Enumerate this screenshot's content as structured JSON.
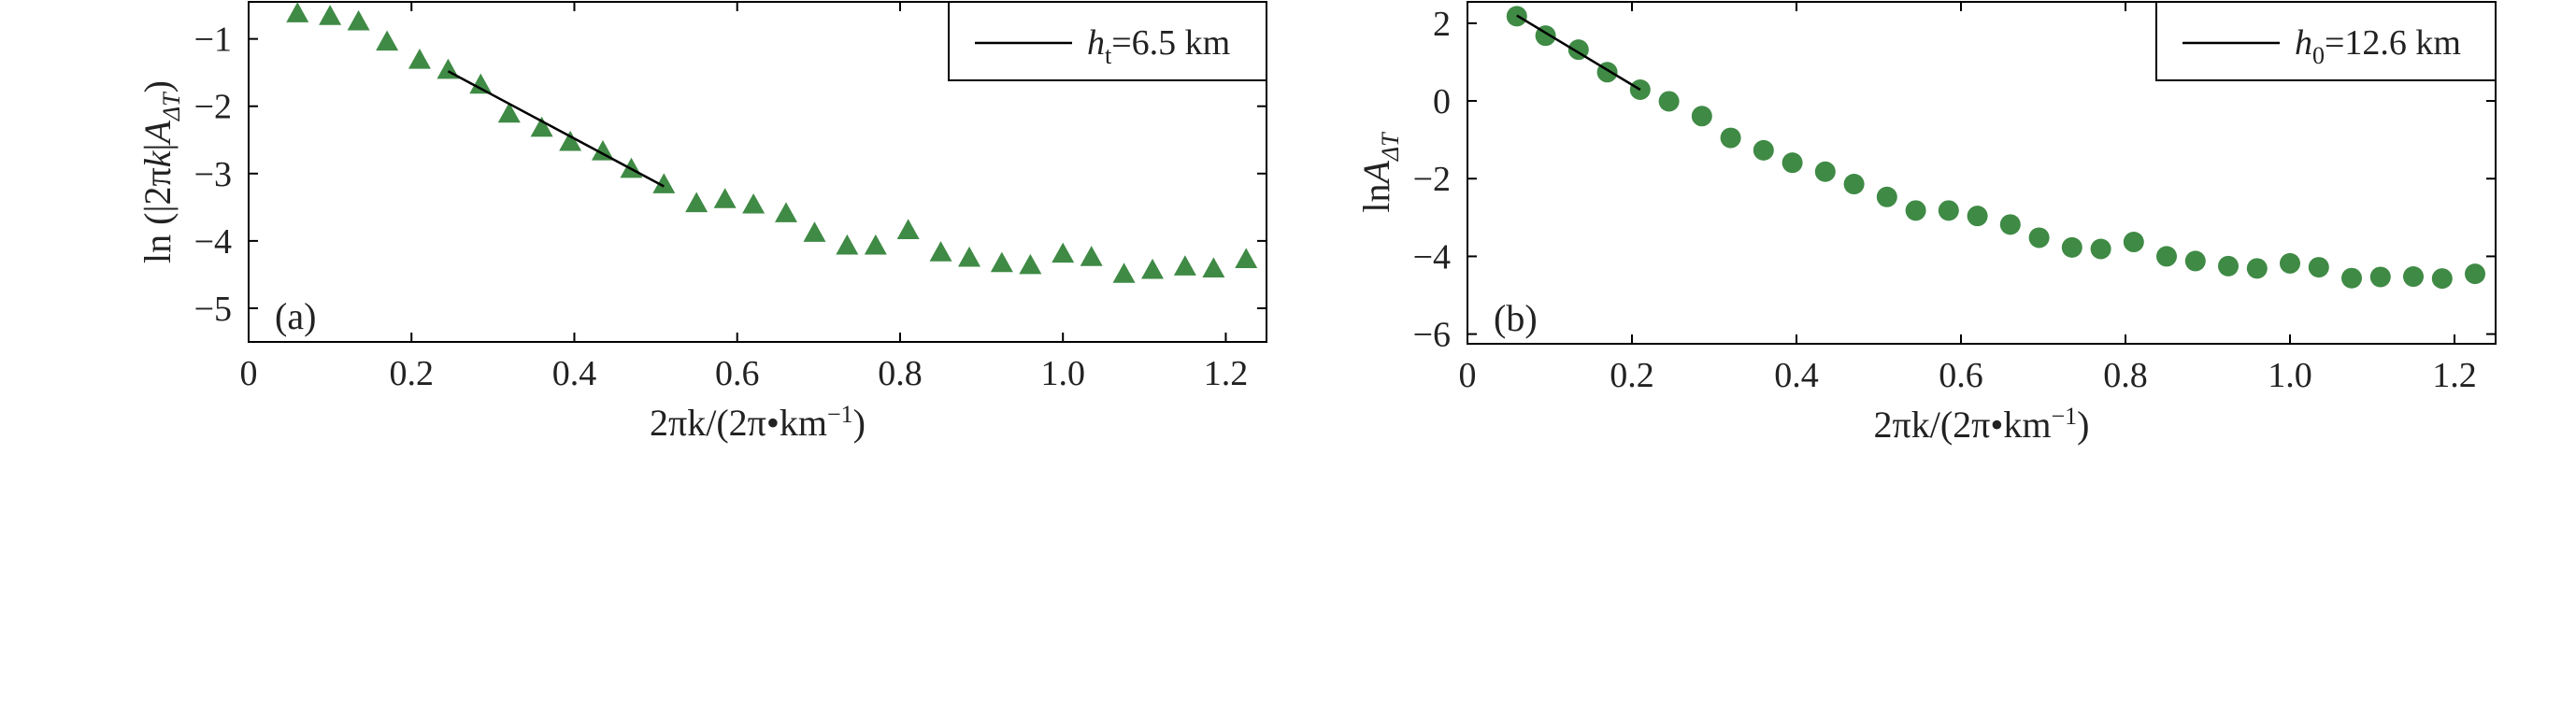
{
  "chart_data": [
    {
      "type": "scatter",
      "panel_label": "(a)",
      "marker": "triangle",
      "color": "#3f8a45",
      "xlabel": {
        "base": "2πk/(2π•km",
        "sup": "−1",
        "end": ")"
      },
      "ylabel": {
        "pre": "ln (|2π",
        "ital": "k",
        "mid": "|",
        "ital2": "A",
        "sub": "ΔT",
        "end": ")"
      },
      "xlim": [
        0,
        1.25
      ],
      "ylim": [
        -5.5,
        -0.45
      ],
      "xticks": [
        0,
        0.2,
        0.4,
        0.6,
        0.8,
        1.0,
        1.2
      ],
      "xtick_labels": [
        "0",
        "0.2",
        "0.4",
        "0.6",
        "0.8",
        "1.0",
        "1.2"
      ],
      "yticks": [
        -1,
        -2,
        -3,
        -4,
        -5
      ],
      "ytick_labels": [
        "−1",
        "−2",
        "−3",
        "−4",
        "−5"
      ],
      "legend": {
        "position": "top-right",
        "ital": "h",
        "sub": "t",
        "rest": "=6.5 km"
      },
      "points": [
        [
          0.06,
          -0.62
        ],
        [
          0.1,
          -0.66
        ],
        [
          0.135,
          -0.74
        ],
        [
          0.17,
          -1.04
        ],
        [
          0.21,
          -1.31
        ],
        [
          0.245,
          -1.46
        ],
        [
          0.285,
          -1.68
        ],
        [
          0.32,
          -2.11
        ],
        [
          0.36,
          -2.32
        ],
        [
          0.395,
          -2.53
        ],
        [
          0.435,
          -2.67
        ],
        [
          0.47,
          -2.93
        ],
        [
          0.51,
          -3.16
        ],
        [
          0.55,
          -3.44
        ],
        [
          0.585,
          -3.38
        ],
        [
          0.62,
          -3.46
        ],
        [
          0.66,
          -3.59
        ],
        [
          0.695,
          -3.88
        ],
        [
          0.735,
          -4.07
        ],
        [
          0.77,
          -4.07
        ],
        [
          0.81,
          -3.84
        ],
        [
          0.85,
          -4.17
        ],
        [
          0.885,
          -4.25
        ],
        [
          0.925,
          -4.33
        ],
        [
          0.96,
          -4.36
        ],
        [
          1.0,
          -4.19
        ],
        [
          1.035,
          -4.24
        ],
        [
          1.075,
          -4.49
        ],
        [
          1.11,
          -4.43
        ],
        [
          1.15,
          -4.38
        ],
        [
          1.185,
          -4.41
        ],
        [
          1.225,
          -4.27
        ]
      ],
      "fit_line": [
        [
          0.245,
          -1.48
        ],
        [
          0.51,
          -3.19
        ]
      ]
    },
    {
      "type": "scatter",
      "panel_label": "(b)",
      "marker": "circle",
      "color": "#3f8a45",
      "xlabel": {
        "base": "2πk/(2π•km",
        "sup": "−1",
        "end": ")"
      },
      "ylabel": {
        "pre": "ln",
        "ital2": "A",
        "sub": "ΔT"
      },
      "xlim": [
        0,
        1.25
      ],
      "ylim": [
        -6.25,
        2.55
      ],
      "xticks": [
        0,
        0.2,
        0.4,
        0.6,
        0.8,
        1.0,
        1.2
      ],
      "xtick_labels": [
        "0",
        "0.2",
        "0.4",
        "0.6",
        "0.8",
        "1.0",
        "1.2"
      ],
      "yticks": [
        2,
        0,
        -2,
        -4,
        -6
      ],
      "ytick_labels": [
        "2",
        "0",
        "−2",
        "−4",
        "−6"
      ],
      "legend": {
        "position": "top-right",
        "ital": "h",
        "sub": "0",
        "rest": "=12.6 km"
      },
      "points": [
        [
          0.06,
          2.18
        ],
        [
          0.095,
          1.68
        ],
        [
          0.135,
          1.32
        ],
        [
          0.17,
          0.74
        ],
        [
          0.21,
          0.29
        ],
        [
          0.245,
          -0.01
        ],
        [
          0.285,
          -0.39
        ],
        [
          0.32,
          -0.95
        ],
        [
          0.36,
          -1.27
        ],
        [
          0.395,
          -1.59
        ],
        [
          0.435,
          -1.82
        ],
        [
          0.47,
          -2.14
        ],
        [
          0.51,
          -2.47
        ],
        [
          0.545,
          -2.82
        ],
        [
          0.585,
          -2.82
        ],
        [
          0.62,
          -2.96
        ],
        [
          0.66,
          -3.18
        ],
        [
          0.695,
          -3.52
        ],
        [
          0.735,
          -3.77
        ],
        [
          0.77,
          -3.81
        ],
        [
          0.81,
          -3.63
        ],
        [
          0.85,
          -4.0
        ],
        [
          0.885,
          -4.12
        ],
        [
          0.925,
          -4.25
        ],
        [
          0.96,
          -4.31
        ],
        [
          1.0,
          -4.18
        ],
        [
          1.035,
          -4.28
        ],
        [
          1.075,
          -4.56
        ],
        [
          1.11,
          -4.53
        ],
        [
          1.15,
          -4.52
        ],
        [
          1.185,
          -4.57
        ],
        [
          1.225,
          -4.45
        ]
      ],
      "fit_line": [
        [
          0.06,
          2.2
        ],
        [
          0.21,
          0.29
        ]
      ]
    }
  ]
}
